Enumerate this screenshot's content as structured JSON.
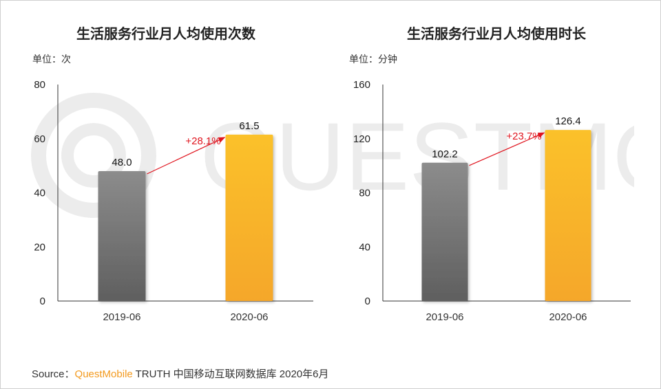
{
  "source": {
    "prefix": "Source：",
    "brand": "QuestMobile",
    "rest": " TRUTH 中国移动互联网数据库 2020年6月"
  },
  "watermark_text": "QUESTMOBILE",
  "colors": {
    "gray_top": "#8c8c8c",
    "gray_bottom": "#5f5f5f",
    "orange_top": "#fbc12c",
    "orange_bottom": "#f5a72c",
    "growth": "#e0141e",
    "axis": "#333333"
  },
  "chart_data": [
    {
      "type": "bar",
      "title": "生活服务行业月人均使用次数",
      "unit_label": "单位：次",
      "categories": [
        "2019-06",
        "2020-06"
      ],
      "values": [
        48.0,
        61.5
      ],
      "value_labels": [
        "48.0",
        "61.5"
      ],
      "ylim": [
        0,
        80
      ],
      "yticks": [
        0,
        20,
        40,
        60,
        80
      ],
      "growth_label": "+28.1%"
    },
    {
      "type": "bar",
      "title": "生活服务行业月人均使用时长",
      "unit_label": "单位：分钟",
      "categories": [
        "2019-06",
        "2020-06"
      ],
      "values": [
        102.2,
        126.4
      ],
      "value_labels": [
        "102.2",
        "126.4"
      ],
      "ylim": [
        0,
        160
      ],
      "yticks": [
        0,
        40,
        80,
        120,
        160
      ],
      "growth_label": "+23.7%"
    }
  ]
}
